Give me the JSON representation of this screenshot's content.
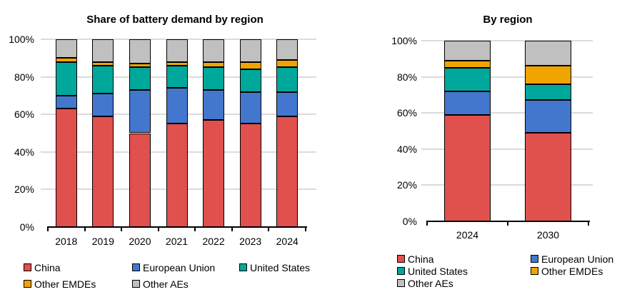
{
  "figure": {
    "background": "#ffffff",
    "text_color": "#000000",
    "gridline_color": "#dbdbdb",
    "axis_color": "#000000",
    "bar_outline_color": "#000000"
  },
  "chart_data": [
    {
      "type": "bar",
      "stacked": true,
      "title": "Share of battery demand by region",
      "categories": [
        "2018",
        "2019",
        "2020",
        "2021",
        "2022",
        "2023",
        "2024"
      ],
      "series": [
        {
          "name": "China",
          "color": "#e0504d",
          "values": [
            63,
            59,
            50,
            55,
            57,
            55,
            59
          ]
        },
        {
          "name": "European Union",
          "color": "#4377ce",
          "values": [
            7,
            12,
            23,
            19,
            16,
            17,
            13
          ]
        },
        {
          "name": "United States",
          "color": "#00a79b",
          "values": [
            18,
            15,
            12,
            12,
            12,
            12,
            13
          ]
        },
        {
          "name": "Other EMDEs",
          "color": "#f0a400",
          "values": [
            2,
            2,
            2,
            2,
            3,
            4,
            4
          ]
        },
        {
          "name": "Other AEs",
          "color": "#c0c0c0",
          "values": [
            10,
            12,
            13,
            12,
            12,
            12,
            11
          ]
        }
      ],
      "y_ticks": [
        "0%",
        "20%",
        "40%",
        "60%",
        "80%",
        "100%"
      ],
      "ylim": [
        0,
        100
      ],
      "grid": "horizontal",
      "legend_position": "bottom"
    },
    {
      "type": "bar",
      "stacked": true,
      "title": "By region",
      "categories": [
        "2024",
        "2030"
      ],
      "series": [
        {
          "name": "China",
          "color": "#e0504d",
          "values": [
            59,
            49
          ]
        },
        {
          "name": "European Union",
          "color": "#4377ce",
          "values": [
            13,
            18
          ]
        },
        {
          "name": "United States",
          "color": "#00a79b",
          "values": [
            13,
            9
          ]
        },
        {
          "name": "Other EMDEs",
          "color": "#f0a400",
          "values": [
            4,
            10
          ]
        },
        {
          "name": "Other AEs",
          "color": "#c0c0c0",
          "values": [
            11,
            14
          ]
        }
      ],
      "y_ticks": [
        "0%",
        "20%",
        "40%",
        "60%",
        "80%",
        "100%"
      ],
      "ylim": [
        0,
        100
      ],
      "grid": "horizontal",
      "legend_position": "bottom"
    }
  ]
}
